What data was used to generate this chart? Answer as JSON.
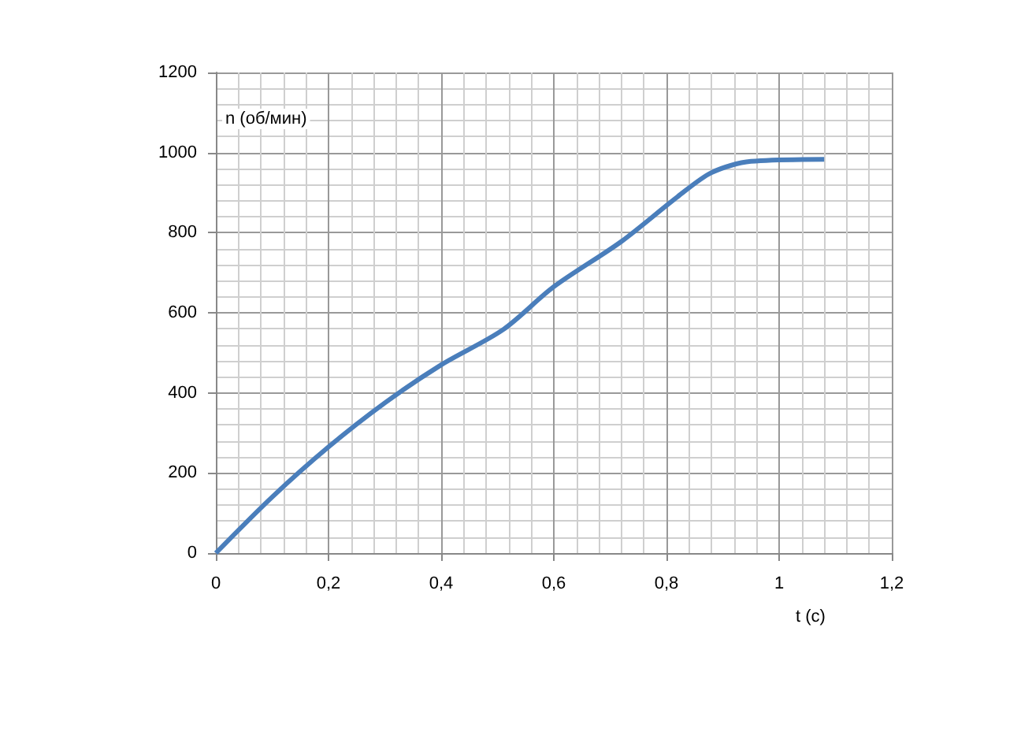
{
  "chart_data": {
    "type": "line",
    "xlabel": "t (с)",
    "ylabel": "n (об/мин)",
    "x": [
      0,
      0.1,
      0.2,
      0.3,
      0.4,
      0.51,
      0.6,
      0.72,
      0.82,
      0.88,
      0.95,
      1.08
    ],
    "series": [
      {
        "color": "#4a7ebb",
        "values": [
          0,
          140,
          265,
          375,
          470,
          558,
          665,
          778,
          890,
          950,
          978,
          983
        ]
      }
    ],
    "xlim": [
      0,
      1.2
    ],
    "xticks": [
      0,
      {
        "value": 0.2,
        "label": "0,2"
      },
      {
        "value": 0.4,
        "label": "0,4"
      },
      {
        "value": 0.6,
        "label": "0,6"
      },
      {
        "value": 0.8,
        "label": "0,8"
      },
      1,
      {
        "value": 1.2,
        "label": "1,2"
      }
    ],
    "ylim": [
      0,
      1200
    ],
    "yticks": [
      0,
      200,
      400,
      600,
      800,
      1000,
      1200
    ],
    "grid": true
  }
}
